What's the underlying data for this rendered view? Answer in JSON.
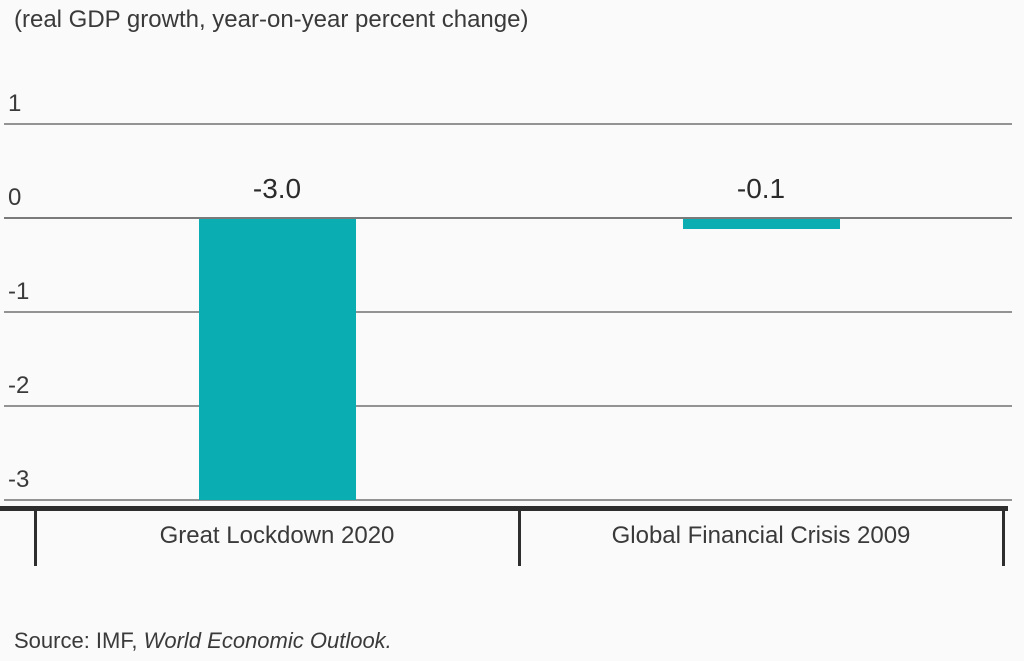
{
  "title": "(real GDP growth, year-on-year percent change)",
  "source": {
    "prefix": "Source: IMF, ",
    "italic": "World Economic Outlook."
  },
  "colors": {
    "bar": "#0AAEB2",
    "gridline": "#939393",
    "zero_line": "#7a7a7a",
    "axis": "#2e2e2e",
    "text": "#3a3a3a",
    "background": "#fafafa"
  },
  "chart_data": {
    "type": "bar",
    "title": "(real GDP growth, year-on-year percent change)",
    "categories": [
      "Great Lockdown 2020",
      "Global Financial Crisis 2009"
    ],
    "values": [
      -3.0,
      -0.1
    ],
    "data_labels": [
      "-3.0",
      "-0.1"
    ],
    "xlabel": "",
    "ylabel": "",
    "y_ticks": [
      1,
      0,
      -1,
      -2,
      -3
    ],
    "ylim": [
      -3.3,
      1.3
    ],
    "grid": true,
    "legend": false,
    "bar_color": "#0AAEB2",
    "source": "Source: IMF, World Economic Outlook."
  }
}
